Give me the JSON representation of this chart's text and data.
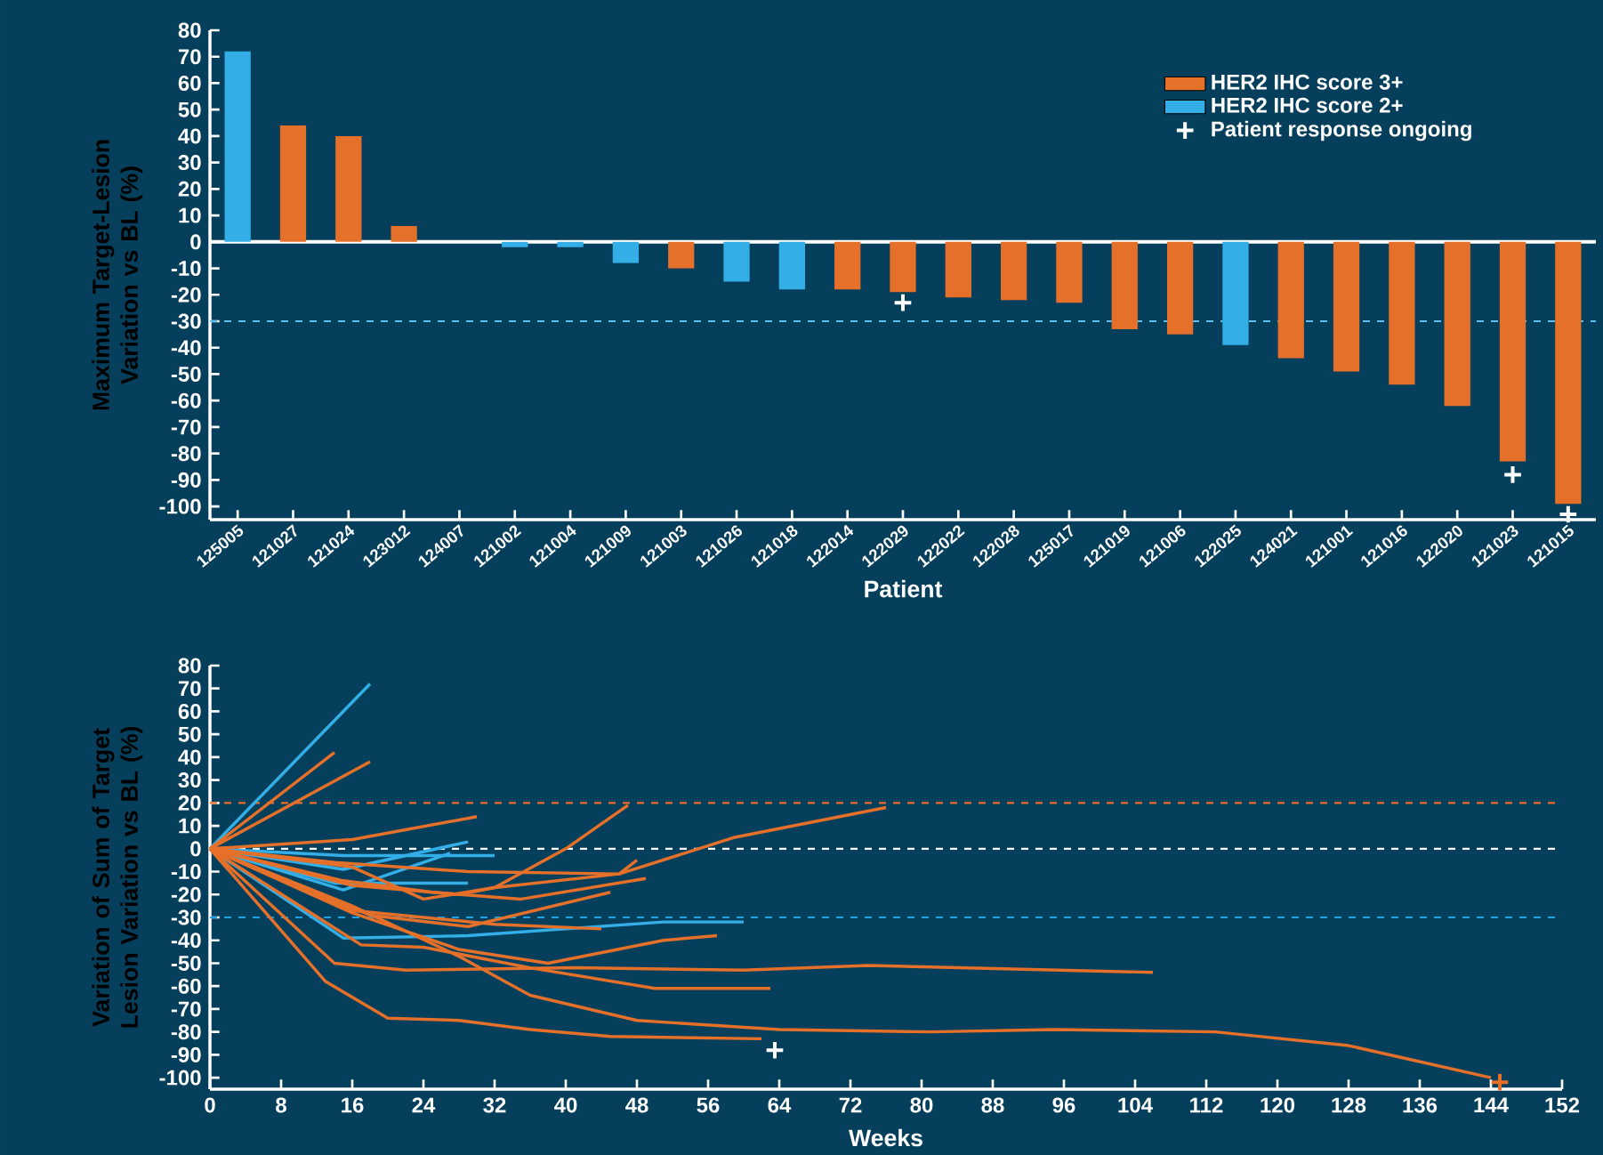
{
  "chart_data": [
    {
      "type": "bar",
      "xlabel": "Patient",
      "ylabel": "Maximum Target-Lesion Variation vs BL (%)",
      "categories": [
        "125005",
        "121027",
        "121024",
        "123012",
        "124007",
        "121002",
        "121004",
        "121009",
        "121003",
        "121026",
        "121018",
        "122014",
        "122029",
        "122022",
        "122028",
        "125017",
        "121019",
        "121006",
        "122025",
        "124021",
        "121001",
        "121016",
        "122020",
        "121023",
        "121015"
      ],
      "series": [
        {
          "name": "HER2 IHC score 3+",
          "color": "#e5702a",
          "values": [
            null,
            44,
            40,
            6,
            0,
            null,
            null,
            null,
            -10,
            null,
            null,
            -18,
            -19,
            -21,
            -22,
            -23,
            -33,
            -35,
            null,
            -44,
            -49,
            -54,
            -62,
            -83,
            -99
          ]
        },
        {
          "name": "HER2 IHC score 2+",
          "color": "#33aee6",
          "values": [
            72,
            null,
            null,
            null,
            null,
            -2,
            -2,
            -8,
            null,
            -15,
            -18,
            null,
            null,
            null,
            null,
            null,
            null,
            null,
            -39,
            null,
            null,
            null,
            null,
            null,
            null
          ]
        },
        {
          "name": "Patient response ongoing",
          "type": "scatter",
          "marker": "cross",
          "color": "#ffffff",
          "x": [
            "122029",
            "121023",
            "121015"
          ],
          "values": [
            -23,
            -88,
            -103
          ]
        }
      ],
      "ylim": [
        -105,
        80
      ],
      "yticks": [
        -100,
        -90,
        -80,
        -70,
        -60,
        -50,
        -40,
        -30,
        -20,
        -10,
        0,
        10,
        20,
        30,
        40,
        50,
        60,
        70,
        80
      ],
      "ref_lines": [
        {
          "axis": "y",
          "value": -30,
          "color": "#5bc0eb",
          "line_style": "dashed"
        },
        {
          "axis": "y",
          "value": 0,
          "color": "#ffffff",
          "line_style": "solid"
        }
      ],
      "legend": "top right"
    },
    {
      "type": "line",
      "xlabel": "Weeks",
      "ylabel": "Variation of Sum of Target Lesion Variation vs BL (%)",
      "series": [
        {
          "color": "#33aee6",
          "x": [
            0,
            18
          ],
          "values": [
            0,
            72
          ]
        },
        {
          "color": "#33aee6",
          "x": [
            0,
            15,
            29
          ],
          "values": [
            0,
            -9,
            3
          ]
        },
        {
          "color": "#33aee6",
          "x": [
            0,
            15,
            32
          ],
          "values": [
            0,
            -3,
            -3
          ]
        },
        {
          "color": "#33aee6",
          "x": [
            0,
            14,
            29
          ],
          "values": [
            0,
            -15,
            -15
          ]
        },
        {
          "color": "#33aee6",
          "x": [
            0,
            15,
            27
          ],
          "values": [
            0,
            -18,
            -2
          ]
        },
        {
          "color": "#33aee6",
          "x": [
            0,
            15,
            29,
            51,
            60
          ],
          "values": [
            0,
            -39,
            -38,
            -32,
            -32
          ]
        },
        {
          "color": "#e5702a",
          "x": [
            0,
            14
          ],
          "values": [
            0,
            42
          ]
        },
        {
          "color": "#e5702a",
          "x": [
            0,
            18
          ],
          "values": [
            0,
            38
          ]
        },
        {
          "color": "#e5702a",
          "x": [
            0,
            16,
            30
          ],
          "values": [
            0,
            4,
            14
          ]
        },
        {
          "color": "#e5702a",
          "x": [
            0,
            16,
            28,
            32,
            40,
            47
          ],
          "values": [
            0,
            -16,
            -20,
            -17,
            0,
            19
          ]
        },
        {
          "color": "#e5702a",
          "x": [
            0,
            14,
            29,
            46,
            48
          ],
          "values": [
            0,
            -6,
            -10,
            -11,
            -5
          ]
        },
        {
          "color": "#e5702a",
          "x": [
            0,
            15,
            25,
            35,
            49
          ],
          "values": [
            0,
            -14,
            -19,
            -22,
            -13
          ]
        },
        {
          "color": "#e5702a",
          "x": [
            0,
            16,
            24,
            32,
            46,
            59,
            76
          ],
          "values": [
            0,
            -8,
            -22,
            -17,
            -11,
            5,
            18
          ]
        },
        {
          "color": "#e5702a",
          "x": [
            0,
            18,
            29,
            45
          ],
          "values": [
            0,
            -29,
            -34,
            -19
          ]
        },
        {
          "color": "#e5702a",
          "x": [
            0,
            16,
            24,
            32,
            44
          ],
          "values": [
            0,
            -27,
            -30,
            -33,
            -35
          ]
        },
        {
          "color": "#e5702a",
          "x": [
            0,
            16,
            28,
            38,
            51,
            57
          ],
          "values": [
            0,
            -28,
            -44,
            -50,
            -40,
            -38
          ]
        },
        {
          "color": "#e5702a",
          "x": [
            0,
            17,
            24,
            36,
            50,
            63
          ],
          "values": [
            0,
            -42,
            -43,
            -52,
            -61,
            -61
          ]
        },
        {
          "color": "#e5702a",
          "x": [
            0,
            14,
            22,
            41,
            60,
            74,
            106
          ],
          "values": [
            0,
            -50,
            -53,
            -52,
            -53,
            -51,
            -54
          ]
        },
        {
          "color": "#e5702a",
          "x": [
            0,
            16,
            28,
            36,
            48,
            64,
            81,
            95,
            113,
            128,
            144
          ],
          "values": [
            0,
            -25,
            -47,
            -64,
            -75,
            -79,
            -80,
            -79,
            -80,
            -86,
            -100
          ]
        },
        {
          "color": "#e5702a",
          "x": [
            0,
            13,
            20,
            28,
            36,
            45,
            62
          ],
          "values": [
            0,
            -58,
            -74,
            -75,
            -79,
            -82,
            -83
          ]
        },
        {
          "type": "scatter",
          "marker": "cross",
          "color": "#ffffff",
          "x": [
            63.5
          ],
          "values": [
            -88
          ]
        },
        {
          "type": "scatter",
          "marker": "cross",
          "color": "#e5702a",
          "x": [
            145
          ],
          "values": [
            -102
          ]
        }
      ],
      "xlim": [
        0,
        152
      ],
      "xticks": [
        0,
        8,
        16,
        24,
        32,
        40,
        48,
        56,
        64,
        72,
        80,
        88,
        96,
        104,
        112,
        120,
        128,
        136,
        144,
        152
      ],
      "ylim": [
        -105,
        80
      ],
      "yticks": [
        -100,
        -90,
        -80,
        -70,
        -60,
        -50,
        -40,
        -30,
        -20,
        -10,
        0,
        10,
        20,
        30,
        40,
        50,
        60,
        70,
        80
      ],
      "ref_lines": [
        {
          "axis": "y",
          "value": 20,
          "color": "#e5702a",
          "line_style": "dashed"
        },
        {
          "axis": "y",
          "value": 0,
          "color": "#ffffff",
          "line_style": "dashed"
        },
        {
          "axis": "y",
          "value": -30,
          "color": "#1e9fe0",
          "line_style": "dashed"
        }
      ]
    }
  ]
}
